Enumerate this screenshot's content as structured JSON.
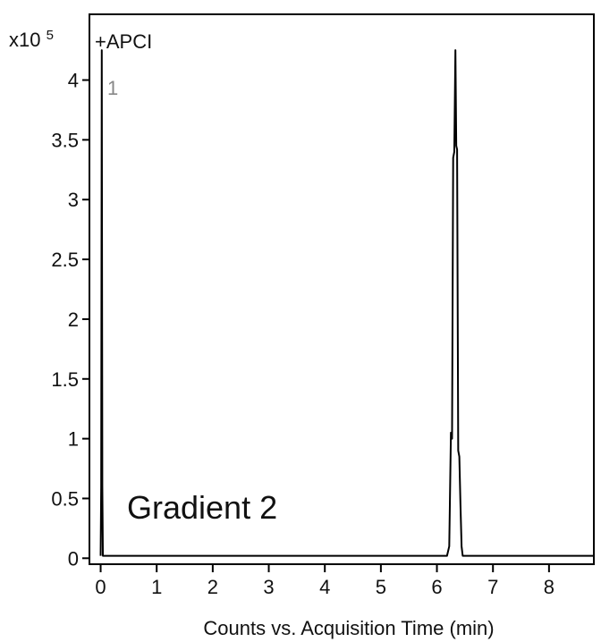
{
  "chart_data": {
    "type": "line",
    "title": "",
    "mode_label": "+APCI",
    "scale_label_base": "x10",
    "scale_label_exp": "5",
    "trace_label": "1",
    "annotation": "Gradient 2",
    "xlabel": "Counts vs. Acquisition Time (min)",
    "ylabel": "",
    "xlim": [
      -0.2,
      8.8
    ],
    "ylim": [
      -0.05,
      4.55
    ],
    "x_ticks": [
      0,
      1,
      2,
      3,
      4,
      5,
      6,
      7,
      8
    ],
    "y_ticks": [
      0,
      0.5,
      1,
      1.5,
      2,
      2.5,
      3,
      3.5,
      4
    ],
    "y_tick_labels": [
      "0",
      "0.5",
      "1",
      "1.5",
      "2",
      "2.5",
      "3",
      "3.5",
      "4"
    ],
    "grid": false,
    "series": [
      {
        "color": "#000000",
        "x": [
          0.0,
          0.01,
          0.02,
          0.03,
          0.04,
          0.06,
          6.18,
          6.22,
          6.25,
          6.27,
          6.29,
          6.31,
          6.33,
          6.345,
          6.36,
          6.38,
          6.4,
          6.42,
          6.44,
          6.46,
          6.5,
          8.8
        ],
        "y": [
          0.02,
          0.6,
          4.25,
          0.6,
          0.02,
          0.02,
          0.02,
          0.1,
          1.05,
          1.0,
          3.35,
          3.4,
          4.25,
          3.45,
          3.42,
          0.9,
          0.85,
          0.45,
          0.1,
          0.02,
          0.02,
          0.02
        ]
      }
    ]
  }
}
